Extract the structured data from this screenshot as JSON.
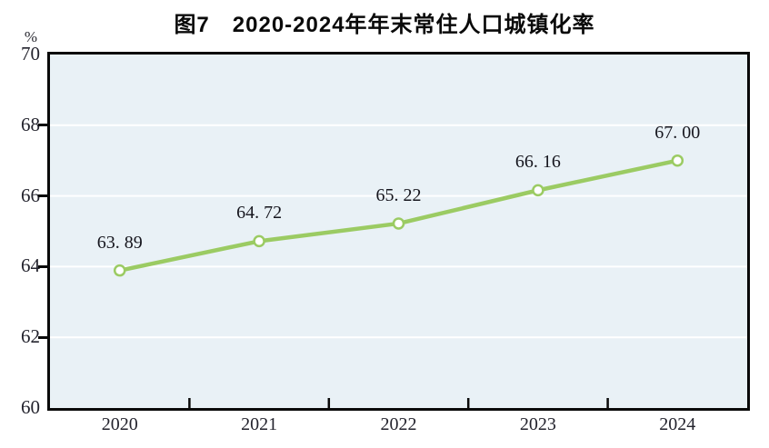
{
  "figure": {
    "title": "图7　2020-2024年年末常住人口城镇化率",
    "unit_label": "%"
  },
  "chart_data": {
    "type": "line",
    "title": "图7　2020-2024年年末常住人口城镇化率",
    "categories": [
      "2020",
      "2021",
      "2022",
      "2023",
      "2024"
    ],
    "values": [
      63.89,
      64.72,
      65.22,
      66.16,
      67.0
    ],
    "point_labels": [
      "63. 89",
      "64. 72",
      "65. 22",
      "66. 16",
      "67. 00"
    ],
    "xlabel": "",
    "ylabel": "%",
    "ylim": [
      60,
      70
    ],
    "yticks": [
      70,
      68,
      66,
      64,
      62,
      60
    ],
    "grid": "horizontal",
    "legend": "none",
    "line_color": "#9bcb63",
    "marker_fill": "#ffffff",
    "plot_bg": "#e9f1f6",
    "gridline_color": "#ffffff",
    "axis_color": "#0a0a0a",
    "text_color": "#23232d"
  }
}
